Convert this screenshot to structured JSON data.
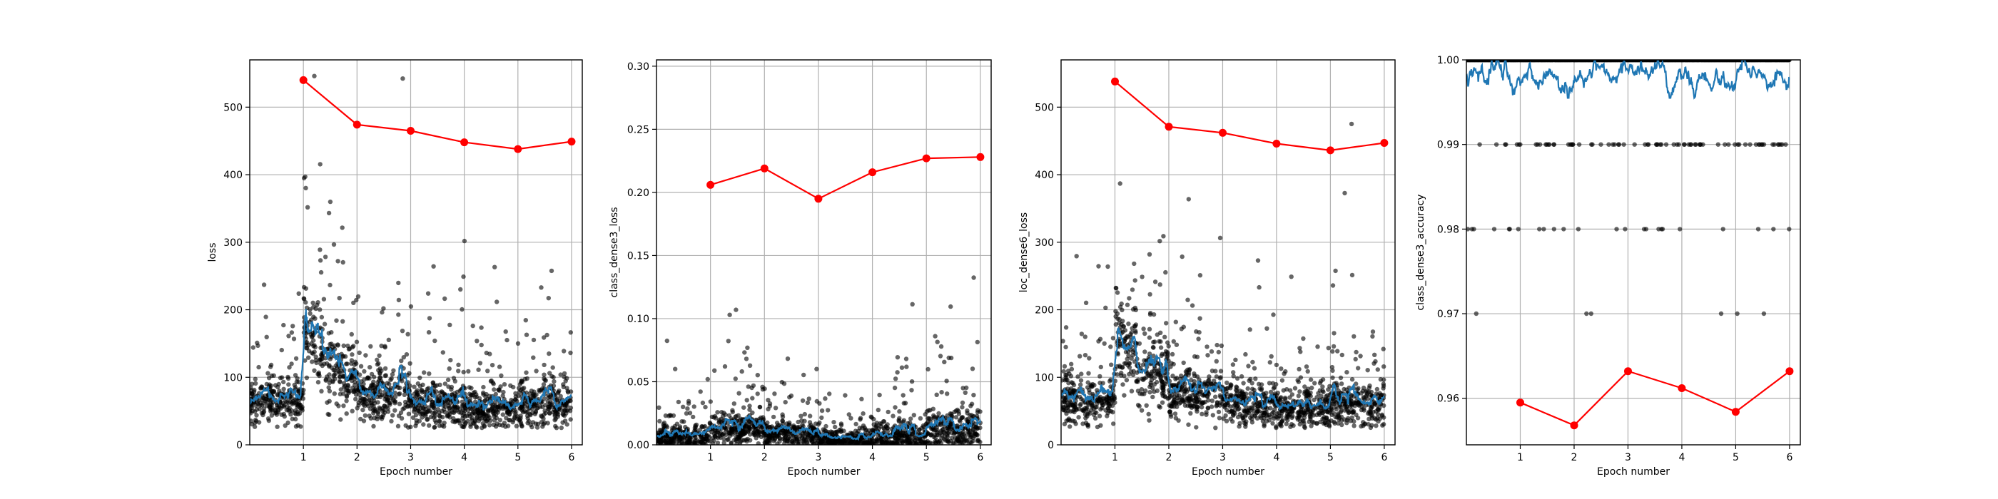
{
  "chart_data": [
    {
      "type": "scatter",
      "xlabel": "Epoch number",
      "ylabel": "loss",
      "xlim": [
        0,
        6.2
      ],
      "ylim": [
        0,
        570
      ],
      "xticks": [
        1,
        2,
        3,
        4,
        5,
        6
      ],
      "yticks": [
        0,
        100,
        200,
        300,
        400,
        500
      ],
      "grid": true,
      "series": [
        {
          "style": "scatter",
          "color": "#000000",
          "description": "per-batch values, mostly 30-150 with outliers up to ~410",
          "segments": [
            [
              0.0,
              1.0,
              65,
              30,
              1
            ],
            [
              1.0,
              1.4,
              150,
              60,
              1
            ],
            [
              1.4,
              2.0,
              105,
              45,
              1
            ],
            [
              2.0,
              3.0,
              72,
              35,
              1
            ],
            [
              3.0,
              4.0,
              58,
              30,
              1
            ],
            [
              4.0,
              5.0,
              52,
              28,
              1
            ],
            [
              5.0,
              6.0,
              60,
              32,
              1
            ]
          ]
        },
        {
          "style": "smoothed-line",
          "color": "#1f77b4"
        },
        {
          "style": "line-markers",
          "color": "#ff0000",
          "x": [
            1,
            2,
            3,
            4,
            5,
            6
          ],
          "y": [
            540,
            474,
            465,
            448,
            438,
            449
          ]
        }
      ]
    },
    {
      "type": "scatter",
      "xlabel": "Epoch number",
      "ylabel": "class_dense3_loss",
      "xlim": [
        0,
        6.2
      ],
      "ylim": [
        0,
        0.305
      ],
      "xticks": [
        1,
        2,
        3,
        4,
        5,
        6
      ],
      "yticks": [
        "0.00",
        "0.05",
        "0.10",
        "0.15",
        "0.20",
        "0.25",
        "0.30"
      ],
      "grid": true,
      "series": [
        {
          "style": "scatter",
          "color": "#000000",
          "description": "per-batch values, mostly 0-0.03 with outliers up to ~0.29",
          "segments": [
            [
              0.0,
              1.0,
              0.006,
              0.008,
              2
            ],
            [
              1.0,
              2.0,
              0.012,
              0.012,
              2
            ],
            [
              2.0,
              3.0,
              0.008,
              0.009,
              2
            ],
            [
              3.0,
              4.0,
              0.004,
              0.007,
              2
            ],
            [
              4.0,
              5.0,
              0.007,
              0.012,
              2
            ],
            [
              5.0,
              6.0,
              0.012,
              0.015,
              2
            ]
          ]
        },
        {
          "style": "smoothed-line",
          "color": "#1f77b4"
        },
        {
          "style": "line-markers",
          "color": "#ff0000",
          "x": [
            1,
            2,
            3,
            4,
            5,
            6
          ],
          "y": [
            0.206,
            0.219,
            0.195,
            0.216,
            0.227,
            0.228
          ]
        }
      ]
    },
    {
      "type": "scatter",
      "xlabel": "Epoch number",
      "ylabel": "loc_dense6_loss",
      "xlim": [
        0,
        6.2
      ],
      "ylim": [
        0,
        570
      ],
      "xticks": [
        1,
        2,
        3,
        4,
        5,
        6
      ],
      "yticks": [
        0,
        100,
        200,
        300,
        400,
        500
      ],
      "grid": true,
      "series": [
        {
          "style": "scatter",
          "color": "#000000",
          "description": "per-batch values, mostly 30-150 with outliers up to ~410",
          "segments": [
            [
              0.0,
              1.0,
              65,
              30,
              3
            ],
            [
              1.0,
              1.4,
              150,
              60,
              3
            ],
            [
              1.4,
              2.0,
              105,
              45,
              3
            ],
            [
              2.0,
              3.0,
              72,
              35,
              3
            ],
            [
              3.0,
              4.0,
              58,
              30,
              3
            ],
            [
              4.0,
              5.0,
              52,
              28,
              3
            ],
            [
              5.0,
              6.0,
              60,
              32,
              3
            ]
          ]
        },
        {
          "style": "smoothed-line",
          "color": "#1f77b4"
        },
        {
          "style": "line-markers",
          "color": "#ff0000",
          "x": [
            1,
            2,
            3,
            4,
            5,
            6
          ],
          "y": [
            538,
            471,
            462,
            446,
            436,
            447
          ]
        }
      ]
    },
    {
      "type": "scatter",
      "xlabel": "Epoch number",
      "ylabel": "class_dense3_accuracy",
      "xlim": [
        0,
        6.2
      ],
      "ylim": [
        0.9545,
        1.0
      ],
      "xticks": [
        1,
        2,
        3,
        4,
        5,
        6
      ],
      "yticks": [
        "0.96",
        "0.97",
        "0.98",
        "0.99",
        "1.00"
      ],
      "grid": true,
      "series": [
        {
          "style": "scatter",
          "color": "#000000",
          "description": "per-batch accuracy, discrete levels 1.00, 0.99, 0.98, 0.97",
          "levels": [
            1.0,
            0.99,
            0.98,
            0.97
          ]
        },
        {
          "style": "smoothed-line",
          "color": "#1f77b4"
        },
        {
          "style": "line-markers",
          "color": "#ff0000",
          "x": [
            1,
            2,
            3,
            4,
            5,
            6
          ],
          "y": [
            0.9595,
            0.9568,
            0.9632,
            0.9612,
            0.9584,
            0.9632
          ]
        }
      ]
    }
  ]
}
